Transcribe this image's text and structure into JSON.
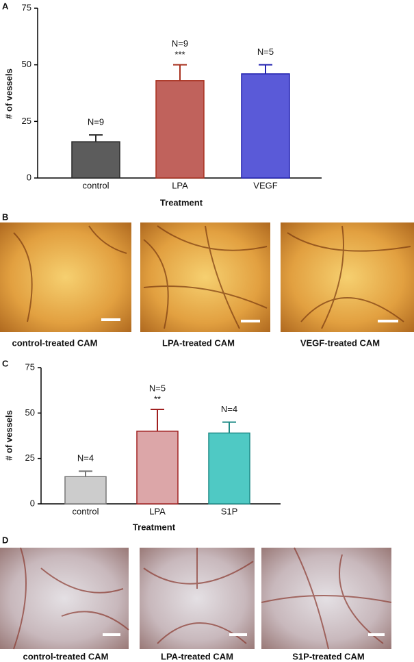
{
  "panel_labels": [
    "A",
    "B",
    "C",
    "D"
  ],
  "chart_data": [
    {
      "type": "bar",
      "x_label": "Treatment",
      "y_label": "# of vessels",
      "categories": [
        "control",
        "LPA",
        "VEGF"
      ],
      "values": [
        16,
        43,
        46
      ],
      "errors": [
        3,
        7,
        4
      ],
      "colors": [
        "#5c5c5c",
        "#c0625c",
        "#5a5ad8"
      ],
      "edge_colors": [
        "#2a2a2a",
        "#a8301e",
        "#2222b0"
      ],
      "n_labels": [
        "N=9",
        "N=9",
        "N=5"
      ],
      "sig_labels": [
        null,
        "***",
        null
      ],
      "ylim": [
        0,
        75
      ],
      "yticks": [
        0,
        25,
        50,
        75
      ]
    },
    {
      "type": "bar",
      "x_label": "Treatment",
      "y_label": "# of vessels",
      "categories": [
        "control",
        "LPA",
        "S1P"
      ],
      "values": [
        15,
        40,
        39
      ],
      "errors": [
        3,
        12,
        6
      ],
      "colors": [
        "#cccccc",
        "#dca6a8",
        "#4fc9c4"
      ],
      "edge_colors": [
        "#777777",
        "#a02020",
        "#1e8a86"
      ],
      "n_labels": [
        "N=4",
        "N=5",
        "N=4"
      ],
      "sig_labels": [
        null,
        "**",
        null
      ],
      "ylim": [
        0,
        75
      ],
      "yticks": [
        0,
        25,
        50,
        75
      ]
    }
  ],
  "photo_sets": [
    {
      "captions": [
        "control-treated CAM",
        "LPA-treated CAM",
        "VEGF-treated CAM"
      ]
    },
    {
      "captions": [
        "control-treated CAM",
        "LPA-treated CAM",
        "S1P-treated CAM"
      ]
    }
  ]
}
